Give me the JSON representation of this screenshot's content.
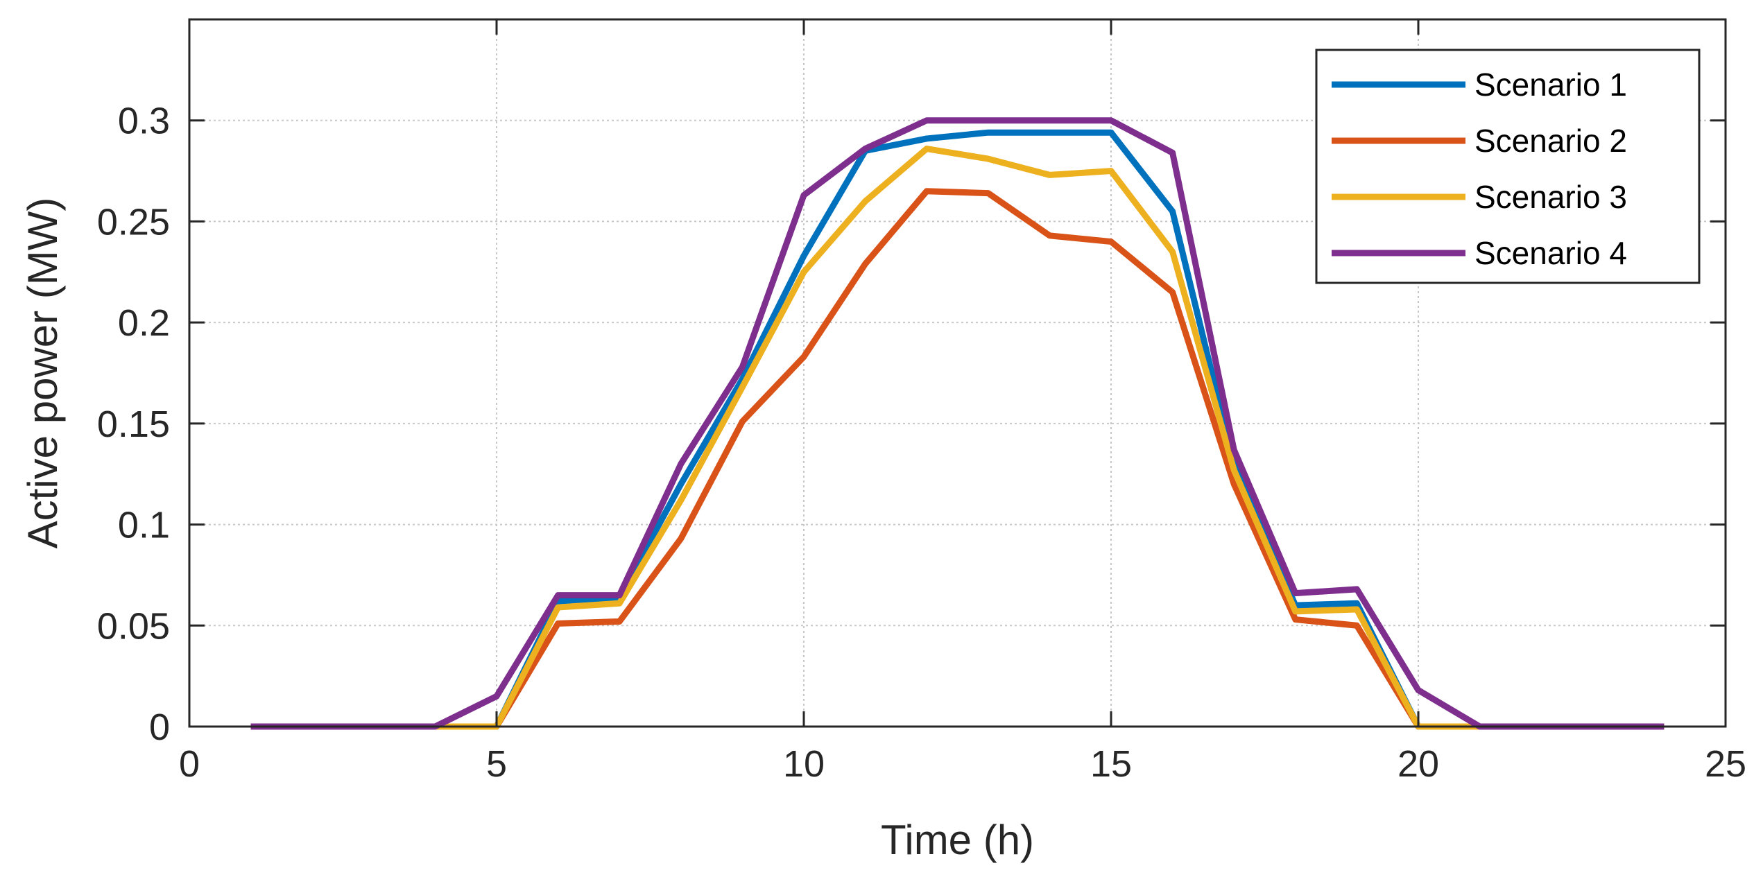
{
  "chart_data": {
    "type": "line",
    "title": "",
    "xlabel": "Time (h)",
    "ylabel": "Active power (MW)",
    "xlim": [
      0,
      25
    ],
    "ylim": [
      0,
      0.35
    ],
    "xticks": [
      0,
      5,
      10,
      15,
      20,
      25
    ],
    "xtick_labels": [
      "0",
      "5",
      "10",
      "15",
      "20",
      "25"
    ],
    "yticks": [
      0,
      0.05,
      0.1,
      0.15,
      0.2,
      0.25,
      0.3
    ],
    "ytick_labels": [
      "0",
      "0.05",
      "0.1",
      "0.15",
      "0.2",
      "0.25",
      "0.3"
    ],
    "grid": true,
    "legend_position": "top-right",
    "x": [
      1,
      2,
      3,
      4,
      5,
      6,
      7,
      8,
      9,
      10,
      11,
      12,
      13,
      14,
      15,
      16,
      17,
      18,
      19,
      20,
      21,
      22,
      23,
      24
    ],
    "series": [
      {
        "name": "Scenario 1",
        "color": "#0072BD",
        "values": [
          0,
          0,
          0,
          0,
          0,
          0.062,
          0.064,
          0.12,
          0.172,
          0.233,
          0.285,
          0.291,
          0.294,
          0.294,
          0.294,
          0.255,
          0.13,
          0.06,
          0.061,
          0,
          0,
          0,
          0,
          0
        ]
      },
      {
        "name": "Scenario 2",
        "color": "#D95319",
        "values": [
          0,
          0,
          0,
          0,
          0,
          0.051,
          0.052,
          0.093,
          0.151,
          0.183,
          0.229,
          0.265,
          0.264,
          0.243,
          0.24,
          0.215,
          0.12,
          0.053,
          0.05,
          0,
          0,
          0,
          0,
          0
        ]
      },
      {
        "name": "Scenario 3",
        "color": "#EDB120",
        "values": [
          0,
          0,
          0,
          0,
          0,
          0.059,
          0.061,
          0.112,
          0.168,
          0.225,
          0.26,
          0.286,
          0.281,
          0.273,
          0.275,
          0.235,
          0.127,
          0.057,
          0.058,
          0,
          0,
          0,
          0,
          0
        ]
      },
      {
        "name": "Scenario 4",
        "color": "#7E2F8E",
        "values": [
          0,
          0,
          0,
          0,
          0.015,
          0.065,
          0.065,
          0.13,
          0.178,
          0.263,
          0.286,
          0.3,
          0.3,
          0.3,
          0.3,
          0.284,
          0.137,
          0.066,
          0.068,
          0.018,
          0,
          0,
          0,
          0
        ]
      }
    ]
  }
}
